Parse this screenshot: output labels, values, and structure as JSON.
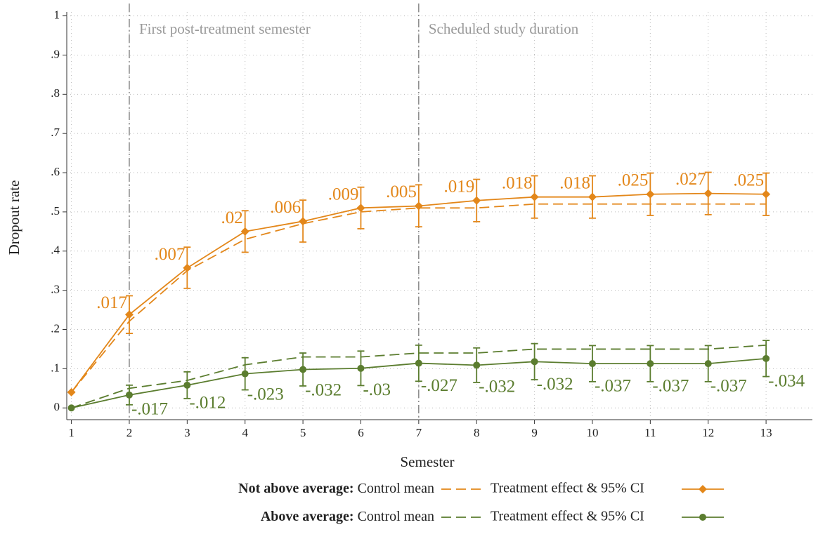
{
  "chart_data": {
    "type": "line",
    "x_label": "Semester",
    "y_label": "Dropout rate",
    "x": [
      1,
      2,
      3,
      4,
      5,
      6,
      7,
      8,
      9,
      10,
      11,
      12,
      13
    ],
    "xlim": [
      0.92,
      13.8
    ],
    "xticks": [
      1,
      2,
      3,
      4,
      5,
      6,
      7,
      8,
      9,
      10,
      11,
      12,
      13
    ],
    "ylim": [
      -0.03,
      1.01
    ],
    "yticks": [
      0,
      {
        "value": 0.1,
        "label": ".1"
      },
      {
        "value": 0.2,
        "label": ".2"
      },
      {
        "value": 0.3,
        "label": ".3"
      },
      {
        "value": 0.4,
        "label": ".4"
      },
      {
        "value": 0.5,
        "label": ".5"
      },
      {
        "value": 0.6,
        "label": ".6"
      },
      {
        "value": 0.7,
        "label": ".7"
      },
      {
        "value": 0.8,
        "label": ".8"
      },
      {
        "value": 0.9,
        "label": ".9"
      },
      1
    ],
    "grid": true,
    "vlines": [
      {
        "x": 2,
        "label": "First post-treatment semester"
      },
      {
        "x": 7,
        "label": "Scheduled study duration"
      }
    ],
    "groups": [
      {
        "name": "Not above average:",
        "color": "#e3871a",
        "marker": "diamond",
        "label_side": "above-left",
        "series": [
          {
            "name": "Control mean",
            "style": "dashed",
            "values": [
              0.04,
              0.221,
              0.35,
              0.43,
              0.47,
              0.5,
              0.51,
              0.51,
              0.52,
              0.52,
              0.52,
              0.52,
              0.52
            ]
          },
          {
            "name": "Treatment effect & 95% CI",
            "style": "solid",
            "values": [
              0.04,
              0.238,
              0.357,
              0.45,
              0.476,
              0.51,
              0.515,
              0.529,
              0.538,
              0.538,
              0.545,
              0.547,
              0.545
            ],
            "ci_lower": [
              null,
              0.19,
              0.305,
              0.397,
              0.423,
              0.457,
              0.462,
              0.475,
              0.484,
              0.484,
              0.491,
              0.493,
              0.491
            ],
            "ci_upper": [
              null,
              0.286,
              0.41,
              0.503,
              0.53,
              0.563,
              0.569,
              0.583,
              0.592,
              0.592,
              0.599,
              0.601,
              0.599
            ],
            "effect_labels": [
              null,
              ".017",
              ".007",
              ".02",
              ".006",
              ".009",
              ".005",
              ".019",
              ".018",
              ".018",
              ".025",
              ".027",
              ".025"
            ]
          }
        ]
      },
      {
        "name": "Above average:",
        "color": "#5b7d2f",
        "marker": "circle",
        "label_side": "below-right",
        "series": [
          {
            "name": "Control mean",
            "style": "dashed",
            "values": [
              0,
              0.05,
              0.07,
              0.11,
              0.13,
              0.13,
              0.14,
              0.14,
              0.15,
              0.15,
              0.15,
              0.15,
              0.16
            ]
          },
          {
            "name": "Treatment effect & 95% CI",
            "style": "solid",
            "values": [
              0,
              0.033,
              0.058,
              0.087,
              0.098,
              0.101,
              0.114,
              0.109,
              0.118,
              0.113,
              0.113,
              0.113,
              0.126
            ],
            "ci_lower": [
              null,
              0.008,
              0.024,
              0.046,
              0.056,
              0.057,
              0.068,
              0.065,
              0.072,
              0.067,
              0.067,
              0.067,
              0.08
            ],
            "ci_upper": [
              null,
              0.058,
              0.092,
              0.128,
              0.14,
              0.145,
              0.16,
              0.153,
              0.164,
              0.159,
              0.159,
              0.159,
              0.172
            ],
            "effect_labels": [
              null,
              "-.017",
              "-.012",
              "-.023",
              "-.032",
              "-.03",
              "-.027",
              "-.032",
              "-.032",
              "-.037",
              "-.037",
              "-.037",
              "-.034"
            ]
          }
        ]
      }
    ]
  }
}
